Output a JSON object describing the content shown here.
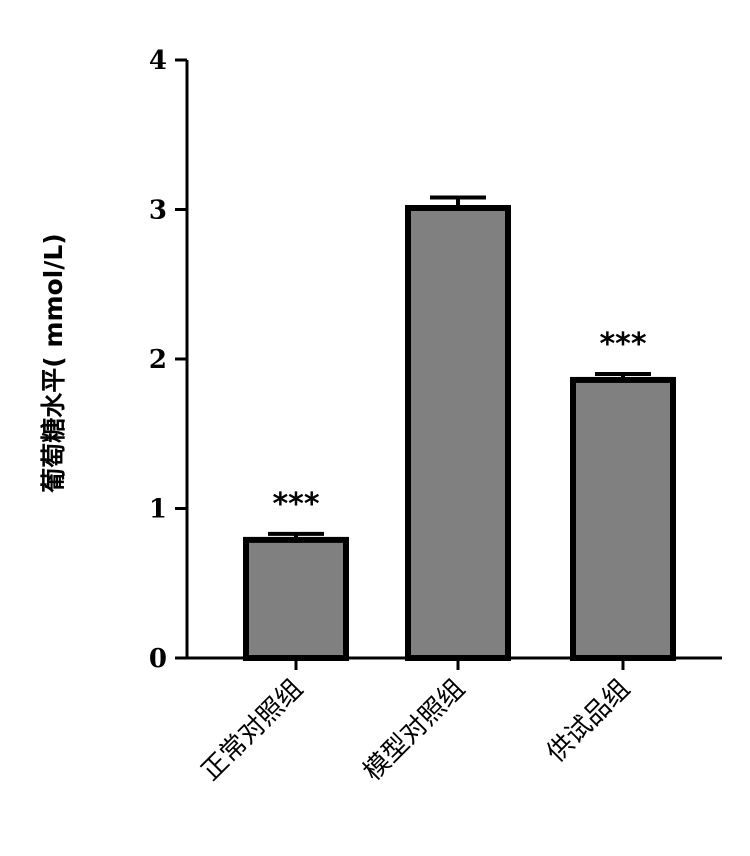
{
  "chart_data": {
    "type": "bar",
    "title": "",
    "xlabel": "",
    "ylabel": "葡萄糖水平( mmol/L)",
    "categories": [
      "正常对照组",
      "模型对照组",
      "供试品组"
    ],
    "values": [
      0.79,
      3.01,
      1.86
    ],
    "errors": [
      0.04,
      0.07,
      0.04
    ],
    "annotations": [
      "***",
      "",
      "***"
    ],
    "ylim": [
      0,
      4
    ],
    "yticks": [
      "0",
      "1",
      "2",
      "3",
      "4"
    ],
    "grid": false,
    "legend": "none",
    "bar_color": "#808080",
    "edge_color": "#000000"
  }
}
